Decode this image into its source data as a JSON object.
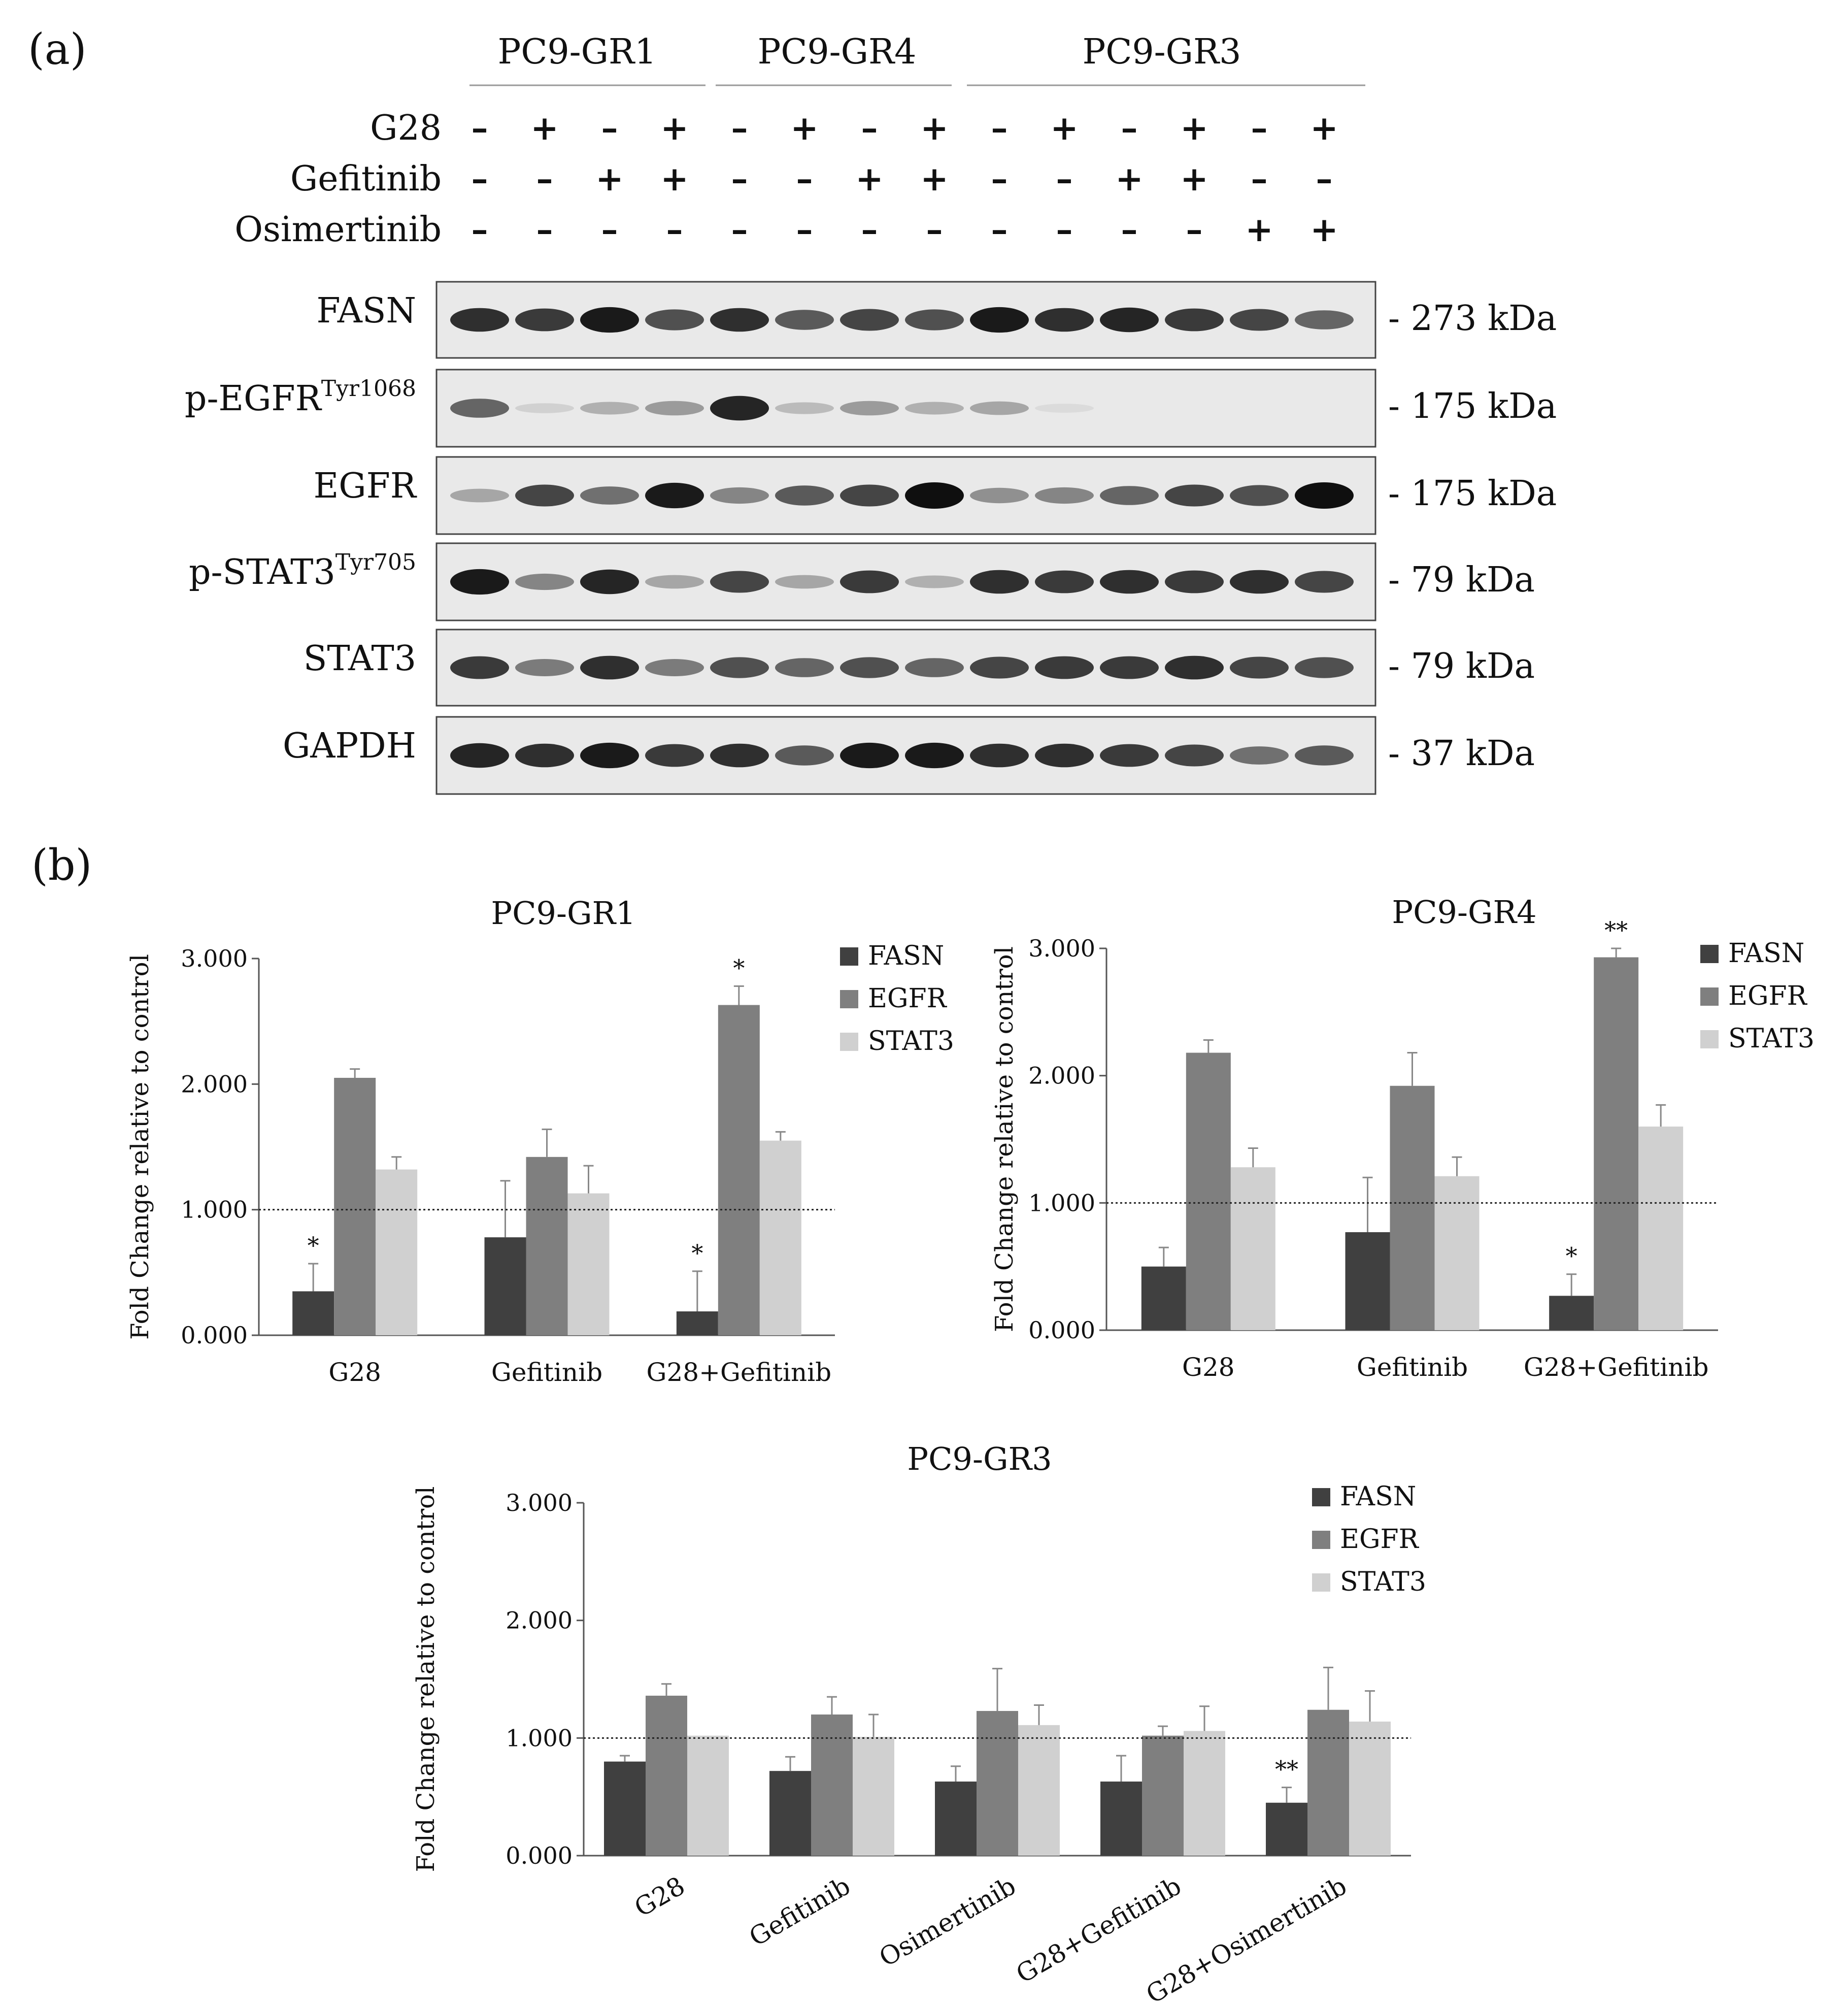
{
  "panel_labels": {
    "a": "(a)",
    "b": "(b)"
  },
  "blot": {
    "groups": [
      "PC9-GR1",
      "PC9-GR4",
      "PC9-GR3"
    ],
    "treatments": [
      {
        "name": "G28",
        "signs": [
          "–",
          "+",
          "–",
          "+",
          "–",
          "+",
          "–",
          "+",
          "–",
          "+",
          "–",
          "+",
          "–",
          "+"
        ]
      },
      {
        "name": "Gefitinib",
        "signs": [
          "–",
          "–",
          "+",
          "+",
          "–",
          "–",
          "+",
          "+",
          "–",
          "–",
          "+",
          "+",
          "–",
          "–"
        ]
      },
      {
        "name": "Osimertinib",
        "signs": [
          "–",
          "–",
          "–",
          "–",
          "–",
          "–",
          "–",
          "–",
          "–",
          "–",
          "–",
          "–",
          "+",
          "+"
        ]
      }
    ],
    "proteins": [
      {
        "label": "FASN",
        "sup": "",
        "size": "- 273 kDa",
        "intensity": [
          0.85,
          0.8,
          0.95,
          0.7,
          0.85,
          0.65,
          0.75,
          0.7,
          0.95,
          0.85,
          0.9,
          0.8,
          0.75,
          0.6
        ]
      },
      {
        "label": "p-EGFR",
        "sup": "Tyr1068",
        "size": "- 175 kDa",
        "intensity": [
          0.6,
          0.1,
          0.25,
          0.35,
          0.9,
          0.2,
          0.35,
          0.25,
          0.3,
          0.05,
          0.0,
          0.0,
          0.0,
          0.0
        ]
      },
      {
        "label": "EGFR",
        "sup": "",
        "size": "- 175 kDa",
        "intensity": [
          0.3,
          0.75,
          0.55,
          0.95,
          0.45,
          0.65,
          0.75,
          1.0,
          0.4,
          0.45,
          0.6,
          0.75,
          0.7,
          1.0
        ]
      },
      {
        "label": "p-STAT3",
        "sup": "Tyr705",
        "size": "- 79 kDa",
        "intensity": [
          0.95,
          0.45,
          0.9,
          0.3,
          0.75,
          0.3,
          0.8,
          0.25,
          0.85,
          0.8,
          0.85,
          0.8,
          0.85,
          0.75
        ]
      },
      {
        "label": "STAT3",
        "sup": "",
        "size": "- 79 kDa",
        "intensity": [
          0.8,
          0.5,
          0.85,
          0.5,
          0.7,
          0.6,
          0.7,
          0.6,
          0.75,
          0.8,
          0.8,
          0.85,
          0.75,
          0.7
        ]
      },
      {
        "label": "GAPDH",
        "sup": "",
        "size": "- 37 kDa",
        "intensity": [
          0.9,
          0.85,
          0.95,
          0.8,
          0.85,
          0.65,
          0.95,
          0.95,
          0.85,
          0.85,
          0.8,
          0.75,
          0.55,
          0.65
        ]
      }
    ]
  },
  "colors": {
    "FASN": "#404040",
    "EGFR": "#7f7f7f",
    "STAT3": "#d0d0d0",
    "error": "#888888",
    "axis": "#555555",
    "ref_line": "#222222"
  },
  "chart_data": [
    {
      "type": "bar",
      "title": "PC9-GR1",
      "ylabel": "Fold Change relative to control",
      "ylim": [
        0,
        3
      ],
      "yticks": [
        "0.000",
        "1.000",
        "2.000",
        "3.000"
      ],
      "ytick_values": [
        0,
        1,
        2,
        3
      ],
      "reference_line": 1.0,
      "categories": [
        "G28",
        "Gefitinib",
        "G28+Gefitinib"
      ],
      "legend_position": "top-right",
      "series": [
        {
          "name": "FASN",
          "values": [
            0.35,
            0.78,
            0.19
          ],
          "errors": [
            0.22,
            0.45,
            0.32
          ],
          "annotations": [
            "*",
            "",
            "*"
          ]
        },
        {
          "name": "EGFR",
          "values": [
            2.05,
            1.42,
            2.63
          ],
          "errors": [
            0.07,
            0.22,
            0.15
          ],
          "annotations": [
            "",
            "",
            "*"
          ]
        },
        {
          "name": "STAT3",
          "values": [
            1.32,
            1.13,
            1.55
          ],
          "errors": [
            0.1,
            0.22,
            0.07
          ],
          "annotations": [
            "",
            "",
            ""
          ]
        }
      ]
    },
    {
      "type": "bar",
      "title": "PC9-GR4",
      "ylabel": "Fold Change relative to control",
      "ylim": [
        0,
        3
      ],
      "yticks": [
        "0.000",
        "1.000",
        "2.000",
        "3.000"
      ],
      "ytick_values": [
        0,
        1,
        2,
        3
      ],
      "reference_line": 1.0,
      "categories": [
        "G28",
        "Gefitinib",
        "G28+Gefitinib"
      ],
      "legend_position": "top-right",
      "series": [
        {
          "name": "FASN",
          "values": [
            0.5,
            0.77,
            0.27
          ],
          "errors": [
            0.15,
            0.43,
            0.17
          ],
          "annotations": [
            "",
            "",
            "*"
          ]
        },
        {
          "name": "EGFR",
          "values": [
            2.18,
            1.92,
            2.93
          ],
          "errors": [
            0.1,
            0.26,
            0.07
          ],
          "annotations": [
            "",
            "",
            "**"
          ]
        },
        {
          "name": "STAT3",
          "values": [
            1.28,
            1.21,
            1.6
          ],
          "errors": [
            0.15,
            0.15,
            0.17
          ],
          "annotations": [
            "",
            "",
            ""
          ]
        }
      ]
    },
    {
      "type": "bar",
      "title": "PC9-GR3",
      "ylabel": "Fold Change relative to control",
      "ylim": [
        0,
        3
      ],
      "yticks": [
        "0.000",
        "1.000",
        "2.000",
        "3.000"
      ],
      "ytick_values": [
        0,
        1,
        2,
        3
      ],
      "reference_line": 1.0,
      "categories": [
        "G28",
        "Gefitinib",
        "Osimertinib",
        "G28+Gefitinib",
        "G28+Osimertinib"
      ],
      "legend_position": "top-right",
      "series": [
        {
          "name": "FASN",
          "values": [
            0.8,
            0.72,
            0.63,
            0.63,
            0.45
          ],
          "errors": [
            0.05,
            0.12,
            0.13,
            0.22,
            0.13
          ],
          "annotations": [
            "",
            "",
            "",
            "",
            "**"
          ]
        },
        {
          "name": "EGFR",
          "values": [
            1.36,
            1.2,
            1.23,
            1.02,
            1.24
          ],
          "errors": [
            0.1,
            0.15,
            0.36,
            0.08,
            0.36
          ],
          "annotations": [
            "",
            "",
            "",
            "",
            ""
          ]
        },
        {
          "name": "STAT3",
          "values": [
            1.02,
            1.01,
            1.11,
            1.06,
            1.14
          ],
          "errors": [
            0.0,
            0.19,
            0.17,
            0.21,
            0.26
          ],
          "annotations": [
            "",
            "",
            "",
            "",
            ""
          ]
        }
      ]
    }
  ]
}
